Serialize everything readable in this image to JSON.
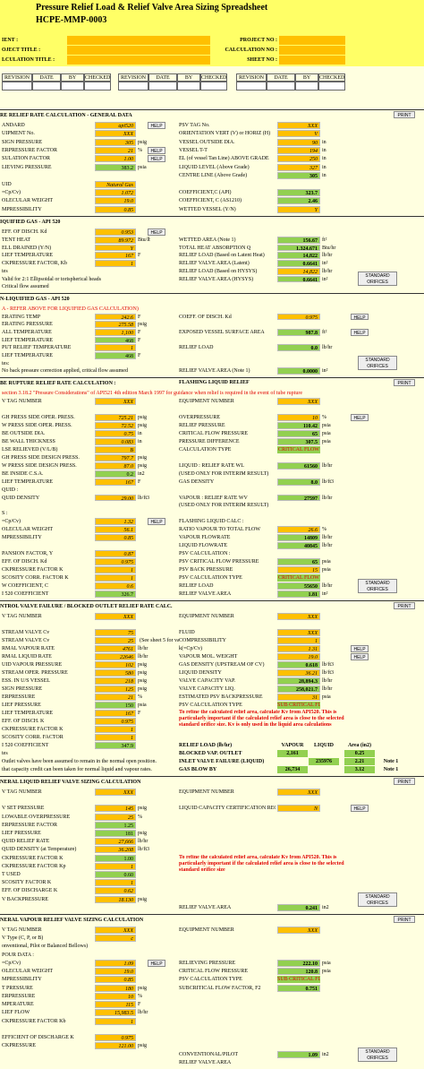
{
  "colors": {
    "input": "#ffc000",
    "calc": "#92d050",
    "note": "#e00000",
    "sheet": "#ffffe0",
    "banner": "#ffff66"
  },
  "header": {
    "title": "Pressure Relief Load & Relief Valve Area Sizing Spreadsheet",
    "doc_no": "HCPE-MMP-0003",
    "left_fields": [
      "IENT :",
      "OJECT TITLE :",
      "LCULATION TITLE :"
    ],
    "right_fields": [
      "PROJECT NO :",
      "CALCULATION NO :",
      "SHEET NO :"
    ]
  },
  "revision_table": {
    "columns": [
      "REVISION",
      "DATE",
      "BY",
      "CHECKED"
    ]
  },
  "sections": [
    {
      "title": "RE RELIEF RATE CALCULATION - GENERAL DATA",
      "print": "PRINT",
      "rows": [
        {
          "l": "ANDARD",
          "lv": "api520",
          "lb": "HELP",
          "r": "PSV TAG No.",
          "rv": "XXX"
        },
        {
          "l": "UIPMENT No.",
          "lv": "XXX",
          "r": "ORIENTATION VERT (V) or HORIZ (H)",
          "rv": "V"
        },
        {
          "l": "SIGN PRESSURE",
          "lv": "305",
          "lu": "psig",
          "r": "VESSEL OUTSIDE DIA.",
          "rv": "90",
          "ru": "in"
        },
        {
          "l": "ERPRESSURE FACTOR",
          "lv": "21",
          "lu": "%",
          "lb": "HELP",
          "r": "VESSEL T-T",
          "rv": "194",
          "ru": "in"
        },
        {
          "l": "SULATION FACTOR",
          "lv": "1.00",
          "lb": "HELP",
          "r": "EL (of vessel Tan Line) ABOVE GRADE",
          "rv": "250",
          "ru": "in"
        },
        {
          "l": "LIEVING PRESSURE",
          "lg": "383.2",
          "lu": "psia",
          "r": "LIQUID LEVEL (Above Grade)",
          "rv": "327",
          "ru": "in"
        },
        {
          "r": "CENTRE LINE (Above Grade)",
          "rg": "305",
          "ru": "in"
        },
        {
          "l": "UID",
          "lv": "Natural Gas"
        },
        {
          "l": "=Cp/Cv)",
          "lv": "1.072",
          "r": "COEFFICIENT,C (API)",
          "rg": "323.7"
        },
        {
          "l": "OLECULAR WEIGHT",
          "lv": "19.0",
          "r": "COEFFICIENT, C (AS1210)",
          "rg": "2.46"
        },
        {
          "l": "MPRESSIBILITY",
          "lv": "0.85",
          "r": "WETTED VESSEL (Y/N)",
          "rv": "Y"
        }
      ]
    },
    {
      "title": "IQUIFIED GAS - API 520",
      "orifices": "STANDARD ORIFICES",
      "rows": [
        {
          "l": "EFF. OF DISCH. Kd",
          "lv": "0.953",
          "lb": "HELP"
        },
        {
          "l": "TENT HEAT",
          "lv": "89.972",
          "lu": "Btu/lb",
          "r": "WETTED AREA (Note 1)",
          "rg": "156.67",
          "ru": "ft²"
        },
        {
          "l": "ELL DRAINED (Y/N)",
          "lv": "Y",
          "r": "TOTAL HEAT ABSORPTION Q",
          "rg": "1,324,671",
          "ru": "Btu/hr"
        },
        {
          "l": "LIEF TEMPERATURE",
          "lv": "167",
          "lu": "F",
          "r": "RELIEF LOAD (Based on Latent Heat)",
          "rg": "14,822",
          "ru": "lb/hr"
        },
        {
          "l": "CKPRESSURE FACTOR, Kb",
          "lv": "1",
          "r": "RELIEF VALVE AREA (Latent)",
          "rg": "0.6641",
          "ru": "in²"
        },
        {
          "l": "tes",
          "r": "RELIEF LOAD (Based on HYSYS)",
          "rv": "14,822",
          "ru": "lb/hr"
        },
        {
          "l": "Valid for 2:1 Ellipsoidal or torispherical heads",
          "r": "RELIEF VALVE AREA (HYSYS)",
          "rg": "0.6641",
          "ru": "in²"
        },
        {
          "l": "Critical flow assumed"
        }
      ]
    },
    {
      "title": "N-LIQUIFIED GAS - API 520",
      "orifices": "STANDARD ORIFICES",
      "rows": [
        {
          "red": "A - REFER ABOVE FOR LIQUIFIED GAS CALCULATION)"
        },
        {
          "l": "ERATING TEMP",
          "lv": "242.6",
          "lu": "F",
          "r": "COEFF. OF DISCH. Kd",
          "rv": "0.975",
          "rb": "HELP"
        },
        {
          "l": "ERATING PRESSURE",
          "lv": "275.58",
          "lu": "psig"
        },
        {
          "l": "ALL TEMPERATURE",
          "lv": "1,100",
          "lu": "F",
          "r": "EXPOSED VESSEL SURFACE AREA",
          "rg": "987.8",
          "ru": "ft²",
          "rb": "HELP"
        },
        {
          "l": "LIEF TEMPERATURE",
          "lg": "468",
          "lu": "F"
        },
        {
          "l": "PUT RELIEF TEMPERATURE",
          "lv": "1",
          "r": "RELIEF LOAD",
          "rg": "0.0",
          "ru": "lb/hr"
        },
        {
          "l": "LIEF TEMPERATURE",
          "lg": "468",
          "lu": "F"
        },
        {
          "l": "tes:"
        },
        {
          "l": "No back pressure correction applied, critical flow assumed",
          "r": "RELIEF VALVE AREA (Note 1)",
          "rg": "0.0000",
          "ru": "in²"
        }
      ]
    },
    {
      "title": "BE RUPTURE RELIEF RATE CALCULATION :",
      "subtitle": "FLASHING LIQUID RELIEF",
      "print": "PRINT",
      "orifices": "STANDARD ORIFICES",
      "rows": [
        {
          "red": "section 3.18.2 \"Pressure Considerations\" of API521 4th edition March 1997 for guidance when relief is required in the event of tube rupture"
        },
        {
          "l": "V TAG NUMBER",
          "lv": "XXX",
          "r": "EQUIPMENT NUMBER",
          "rv": "XXX"
        },
        {},
        {
          "l": "GH PRESS SIDE OPER. PRESS.",
          "lv": "725.21",
          "lu": "psig",
          "r": "OVERPRESSURE",
          "rv": "10",
          "ru": "%",
          "rb": "HELP"
        },
        {
          "l": "W PRESS SIDE OPER. PRESS.",
          "lv": "72.52",
          "lu": "psig",
          "r": "RELIEF PRESSURE",
          "rg": "110.42",
          "ru": "psia"
        },
        {
          "l": "BE OUTSIDE DIA.",
          "lv": "0.75",
          "lu": "in",
          "r": "CRITICAL FLOW PRESSURE",
          "rg": "65",
          "ru": "psia"
        },
        {
          "l": "BE WALL THICKNESS",
          "lv": "0.083",
          "lu": "in",
          "r": "PRESSURE DIFFERENCE",
          "rg": "307.5",
          "ru": "psia"
        },
        {
          "l": "LSE RELIEVED (V/L/B)",
          "lv": "B",
          "r": "CALCULATION TYPE",
          "rt": "CRITICAL FLOW"
        },
        {
          "l": "GH PRESS SIDE DESIGN PRESS.",
          "lv": "797.7",
          "lu": "psig"
        },
        {
          "l": "W PRESS SIDE DESIGN PRESS.",
          "lv": "87.0",
          "lu": "psig",
          "r": "LIQUID : RELIEF RATE WL",
          "rg": "61560",
          "ru": "lb/hr"
        },
        {
          "l": "BE INSIDE C.S.A.",
          "lg": "0.2",
          "lu": "in2",
          "r": "(USED ONLY FOR INTERIM RESULT)"
        },
        {
          "l": "LIEF TEMPERATURE",
          "lv": "167",
          "lu": "F",
          "r": "GAS DENSITY",
          "rg": "8.0",
          "ru": "lb/ft3"
        },
        {
          "l": "QUID :"
        },
        {
          "l": "QUID DENSITY",
          "lv": "29.00",
          "lu": "lb/ft3",
          "r": "VAPOUR : RELIEF RATE WV",
          "rg": "27597",
          "ru": "lb/hr"
        },
        {
          "r": "(USED ONLY FOR INTERIM RESULT)"
        },
        {
          "l": "S :"
        },
        {
          "l": "=Cp/Cv)",
          "lv": "1.32",
          "lb": "HELP",
          "r": "FLASHING LIQUID CALC :"
        },
        {
          "l": "OLECULAR WEIGHT",
          "lv": "56.1",
          "r": "RATIO VAPOUR TO TOTAL FLOW",
          "rv": "26.6",
          "ru": "%"
        },
        {
          "l": "MPRESSIBILITY",
          "lv": "0.85",
          "r": "VAPOUR FLOWRATE",
          "rg": "14809",
          "ru": "lb/hr"
        },
        {
          "r": "LIQUID FLOWRATE",
          "rg": "40845",
          "ru": "lb/hr"
        },
        {
          "l": "PANSION FACTOR, Y",
          "lv": "0.87",
          "r": "PSV CALCULATION :"
        },
        {
          "l": "EFF. OF DISCH. Kd",
          "lv": "0.975",
          "r": "PSV CRITICAL FLOW PRESSURE",
          "rg": "65",
          "ru": "psia"
        },
        {
          "l": "CKPRESSURE FACTOR K",
          "lv": "1",
          "r": "PSV BACK PRESSURE",
          "rv": "15",
          "ru": "psia"
        },
        {
          "l": "SCOSITY CORR. FACTOR K",
          "lv": "1",
          "r": "PSV CALCULATION TYPE",
          "rt": "CRITICAL FLOW"
        },
        {
          "l": "W COEFFICIENT, C",
          "lv": "0.6",
          "r": "RELIEF LOAD",
          "rg": "55650",
          "ru": "lb/hr"
        },
        {
          "l": "I 520 COEFFICIENT",
          "lg": "326.7",
          "r": "RELIEF VALVE AREA",
          "rg": "1.81",
          "ru": "in²"
        }
      ]
    },
    {
      "title": "NTROL VALVE FAILURE / BLOCKED OUTLET RELIEF RATE CALC.",
      "print": "PRINT",
      "rows": [
        {
          "l": "V TAG NUMBER",
          "lv": "XXX",
          "r": "EQUIPMENT NUMBER",
          "rv": "XXX"
        },
        {},
        {
          "l": "STREAM VALVE Cv",
          "lv": "75",
          "r": "FLUID",
          "rv": "XXX"
        },
        {
          "l": "STREAM VALVE Cv",
          "lv": "25",
          "lx": "(See sheet 5 for values)",
          "r": "COMPRESSIBILITY",
          "rv": "1"
        },
        {
          "l": "RMAL VAPOUR RATE",
          "lv": "4761",
          "lu": "lb/hr",
          "r": "k(=Cp/Cv)",
          "rv": "1.31",
          "rb": "HELP"
        },
        {
          "l": "RMAL LIQUID RATE",
          "lv": "22646",
          "lu": "lb/hr",
          "r": "VAPOUR MOL. WEIGHT",
          "rv": "19.0",
          "rb": "HELP"
        },
        {
          "l": "UID VAPOUR PRESSURE",
          "lv": "102",
          "lu": "psig",
          "r": "GAS DENSITY (UPSTREAM OF CV)",
          "rg": "0.618",
          "ru": "lb/ft3"
        },
        {
          "l": "STREAM OPER. PRESSURE",
          "lv": "580",
          "lu": "psig",
          "r": "LIQUID DENSITY",
          "rv": "36.21",
          "ru": "lb/ft3"
        },
        {
          "l": "ESS. IN U/S VESSEL",
          "lv": "218",
          "lu": "psig",
          "r": "VALVE CAPACITY VAP.",
          "rg": "28,894.3",
          "ru": "lb/hr"
        },
        {
          "l": "SIGN PRESSURE",
          "lv": "125",
          "lu": "psig",
          "r": "VALVE CAPACITY LIQ.",
          "rg": "258,021.7",
          "ru": "lb/hr"
        },
        {
          "l": "ERPRESSURE",
          "lv": "21",
          "lu": "%",
          "r": "ESTIMATED PSV BACKPRESSURE",
          "rv": "31",
          "ru": "psia"
        },
        {
          "l": "LIEF PRESSURE",
          "lg": "150",
          "lu": "psia",
          "r": "PSV CALCULATION TYPE",
          "rt": "SUB CRITICAL FLOW"
        },
        {
          "l": "LIEF TEMPERATURE",
          "lv": "167",
          "lu": "F",
          "rred": "To refine the calculated relief area, calculate Kv from API520. This is particularly important if the calculated relief area is close to the selected standard orifice size. Kv is only used in the liquid area calculations"
        },
        {
          "l": "EFF. OF DISCH. K",
          "lv": "0.975"
        },
        {
          "l": "CKPRESSURE FACTOR K",
          "lv": "1"
        },
        {
          "l": "SCOSITY CORR. FACTOR",
          "lv": "1"
        },
        {
          "l": "I 520 COEFFICIENT",
          "lg": "347.9",
          "r": "RELIEF LOAD (lb/hr)",
          "rcols": [
            "VAPOUR",
            "LIQUID",
            "Area (in2)"
          ]
        },
        {
          "l": "tes",
          "r": "BLOCKED VAP. OUTLET",
          "rcols": [
            "2,161",
            null,
            "0.25"
          ]
        },
        {
          "l": "Outlet valves have been assumed to remain in the normal open position.",
          "r": "INLET VALVE FAILURE (LIQUID)",
          "rcols": [
            null,
            "235976",
            "2.21",
            "Note 1"
          ]
        },
        {
          "l": "that capacity credit can been taken for normal liquid and vapour rates.",
          "r": "GAS BLOW BY",
          "rcols": [
            "26,734",
            null,
            "3.12",
            "Note 1"
          ]
        }
      ]
    },
    {
      "title": "NERAL LIQUID RELIEF VALVE SIZING CALCULATION",
      "print": "PRINT",
      "orifices": "STANDARD ORIFICES",
      "rows": [
        {
          "l": "V TAG NUMBER",
          "lv": "XXX",
          "r": "EQUIPMENT NUMBER",
          "rv": "XXX"
        },
        {},
        {
          "l": "V SET PRESSURE",
          "lv": "145",
          "lu": "psig",
          "r": "LIQUID CAPACITY CERTIFICATION REQD ? (Y/N)",
          "rv": "N",
          "rb": "HELP"
        },
        {
          "l": "LOWABLE OVERPRESSURE",
          "lv": "25",
          "lu": "%"
        },
        {
          "l": "ERPRESSURE FACTOR",
          "lg": "1.25"
        },
        {
          "l": "LIEF PRESSURE",
          "lg": "181",
          "lu": "psig"
        },
        {
          "l": "QUID RELIEF RATE",
          "lv": "27,666",
          "lu": "lb/hr"
        },
        {
          "l": "QUID DENSITY (at Temperature)",
          "lv": "36.208",
          "lu": "lb/ft3"
        },
        {
          "l": "CKPRESSURE FACTOR K",
          "lg": "1.00",
          "rred": "To refine the calculated relief area, calculate Kv from API520. This is particularly important if the calculated relief area is close to the selected standard orifice size"
        },
        {
          "l": "CKPRESSURE FACTOR Kp",
          "lv": "1"
        },
        {
          "l": "T USED",
          "lg": "0.60"
        },
        {
          "l": "SCOSITY FACTOR K",
          "lv": "1"
        },
        {
          "l": "EFF. OF DISCHARGE K",
          "lv": "0.62"
        },
        {
          "l": "V BACKPRESSURE",
          "lv": "18.130",
          "lu": "psig"
        },
        {
          "r": "RELIEF VALVE AREA",
          "rg": "0.241",
          "ru": "in2"
        }
      ]
    },
    {
      "title": "NERAL VAPOUR RELIEF VALVE SIZING CALCULATION",
      "print": "PRINT",
      "orifices": "STANDARD ORIFICES",
      "rows": [
        {
          "l": "V TAG NUMBER",
          "lv": "XXX",
          "r": "EQUIPMENT NUMBER",
          "rv": "XXX"
        },
        {
          "l": "V Type (C, P, or B)",
          "lv": "c"
        },
        {
          "l": "onventional, Pilot or Balanced Bellows)"
        },
        {
          "l": "POUR DATA :"
        },
        {
          "l": "=Cp/Cv)",
          "lv": "1.09",
          "lb": "HELP",
          "r": "RELIEVING PRESSURE",
          "rg": "222.10",
          "ru": "psia"
        },
        {
          "l": "OLECULAR WEIGHT",
          "lv": "19.0",
          "r": "CRITICAL FLOW PRESSURE",
          "rg": "120.8",
          "ru": "psia"
        },
        {
          "l": "MPRESSIBILITY",
          "lv": "0.85",
          "r": "PSV CALCULATION TYPE",
          "rt": "SUB CRITICAL FLOW"
        },
        {
          "l": "T PRESSURE",
          "lv": "180",
          "lu": "psig",
          "r": "SUBCRITICAL FLOW FACTOR, F2",
          "rg": "0.751"
        },
        {
          "l": "ERPRESSURE",
          "lv": "10",
          "lu": "%"
        },
        {
          "l": "MPERATURE",
          "lv": "115",
          "lu": "F"
        },
        {
          "l": "LIEF FLOW",
          "lv": "15,983.5",
          "lu": "lb/hr"
        },
        {
          "l": "CKPRESSURE FACTOR Kb",
          "lv": "1"
        },
        {},
        {
          "l": "EFFICIENT OF DISCHARGE K",
          "lv": "0.975"
        },
        {
          "l": "CKPRESSURE",
          "lv": "121.00",
          "lu": "psig"
        },
        {
          "r": "CONVENTIONAL/PILOT",
          "rg": "1.09",
          "ru": "in2"
        },
        {
          "r": "RELIEF VALVE AREA"
        }
      ]
    }
  ]
}
